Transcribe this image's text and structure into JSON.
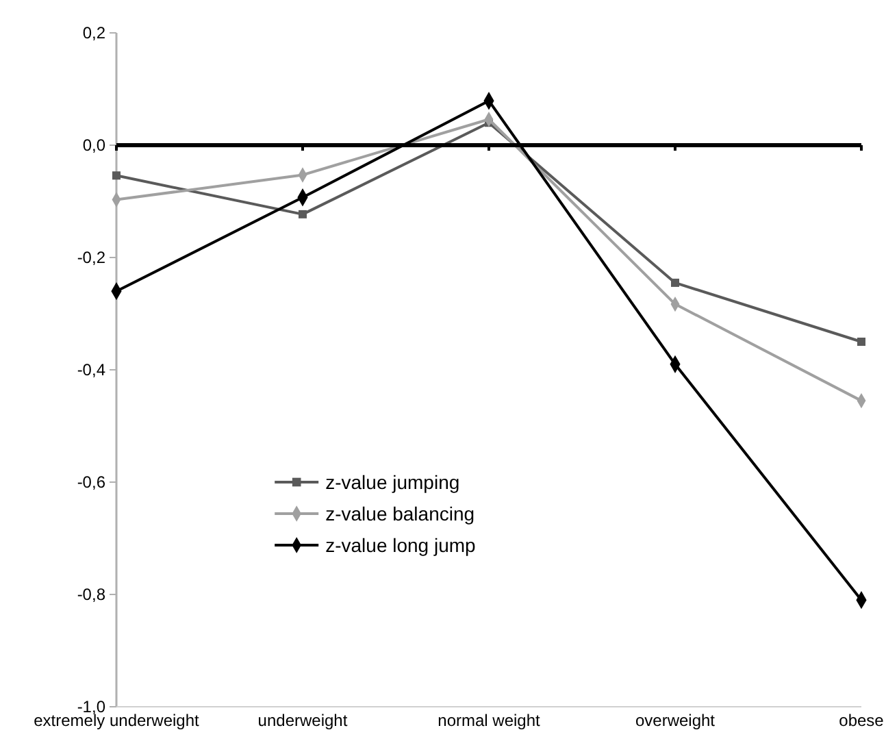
{
  "chart_data": {
    "type": "line",
    "categories": [
      "extremely underweight",
      "underweight",
      "normal weight",
      "overweight",
      "obese"
    ],
    "series": [
      {
        "name": "z-value jumping",
        "color": "#5a5a5a",
        "marker": "square",
        "values": [
          -0.054,
          -0.123,
          0.04,
          -0.245,
          -0.35
        ]
      },
      {
        "name": "z-value balancing",
        "color": "#a0a0a0",
        "marker": "diamond",
        "values": [
          -0.097,
          -0.053,
          0.046,
          -0.283,
          -0.455
        ]
      },
      {
        "name": "z-value long jump",
        "color": "#000000",
        "marker": "diamond",
        "values": [
          -0.26,
          -0.093,
          0.079,
          -0.39,
          -0.81
        ]
      }
    ],
    "ylim": [
      -1,
      0.2
    ],
    "yticks": [
      {
        "value": 0.2,
        "label": "0,2"
      },
      {
        "value": 0,
        "label": "0,0"
      },
      {
        "value": -0.2,
        "label": "-0,2"
      },
      {
        "value": -0.4,
        "label": "-0,4"
      },
      {
        "value": -0.6,
        "label": "-0,6"
      },
      {
        "value": -0.8,
        "label": "-0,8"
      },
      {
        "value": -1,
        "label": "-1,0"
      }
    ],
    "legend": "bottom left"
  }
}
